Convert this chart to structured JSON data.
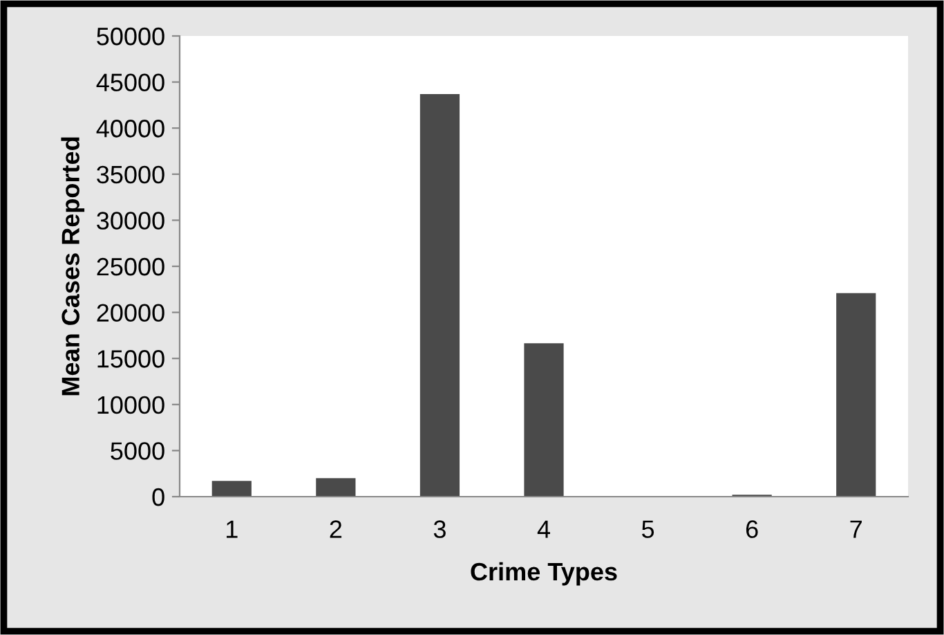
{
  "chart_data": {
    "type": "bar",
    "xlabel": "Crime Types",
    "ylabel": "Mean Cases Reported",
    "categories": [
      "1",
      "2",
      "3",
      "4",
      "5",
      "6",
      "7"
    ],
    "values": [
      1700,
      2000,
      43700,
      16650,
      0,
      200,
      22100
    ],
    "color": "#4a4a4a",
    "ylim": [
      0,
      50000
    ],
    "yticks": [
      0,
      5000,
      10000,
      15000,
      20000,
      25000,
      30000,
      35000,
      40000,
      45000,
      50000
    ],
    "grid": false,
    "legend": false
  }
}
